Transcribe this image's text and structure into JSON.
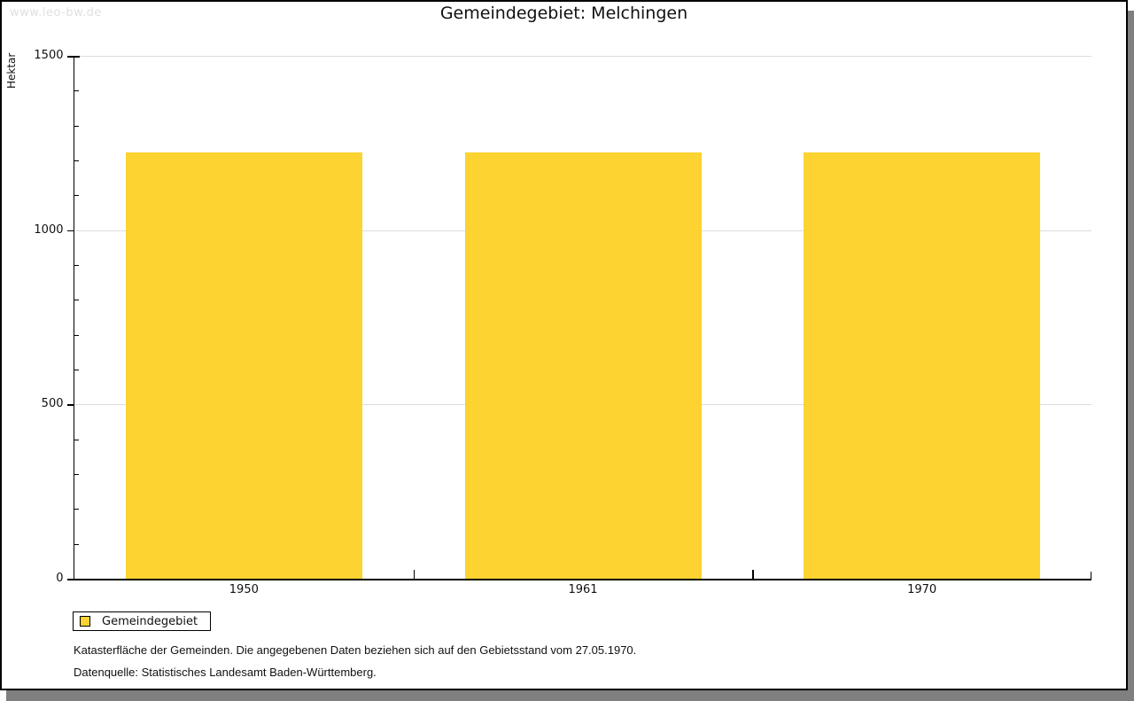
{
  "watermark": "www.leo-bw.de",
  "header": {
    "title": "Gemeindegebiet: Melchingen"
  },
  "chart_data": {
    "type": "bar",
    "title": "Gemeindegebiet: Melchingen",
    "categories": [
      "1950",
      "1961",
      "1970"
    ],
    "series": [
      {
        "name": "Gemeindegebiet",
        "values": [
          1222,
          1222,
          1222
        ]
      }
    ],
    "xlabel": "",
    "ylabel": "Hektar",
    "unit": "Hektar",
    "ylim": [
      0,
      1500
    ],
    "yticks": [
      0,
      500,
      1000,
      1500
    ],
    "minor_tick_step": 100,
    "grid": true,
    "legend_position": "bottom-left",
    "bar_color": "#fcd330",
    "gridline_color": "#dcdcdc",
    "axis_color": "#000000"
  },
  "legend": {
    "label": "Gemeindegebiet",
    "swatch_color": "#fcd330"
  },
  "footnotes": [
    "Katasterfläche der Gemeinden. Die angegebenen Daten beziehen sich auf den Gebietsstand vom 27.05.1970.",
    "Datenquelle: Statistisches Landesamt Baden-Württemberg."
  ]
}
